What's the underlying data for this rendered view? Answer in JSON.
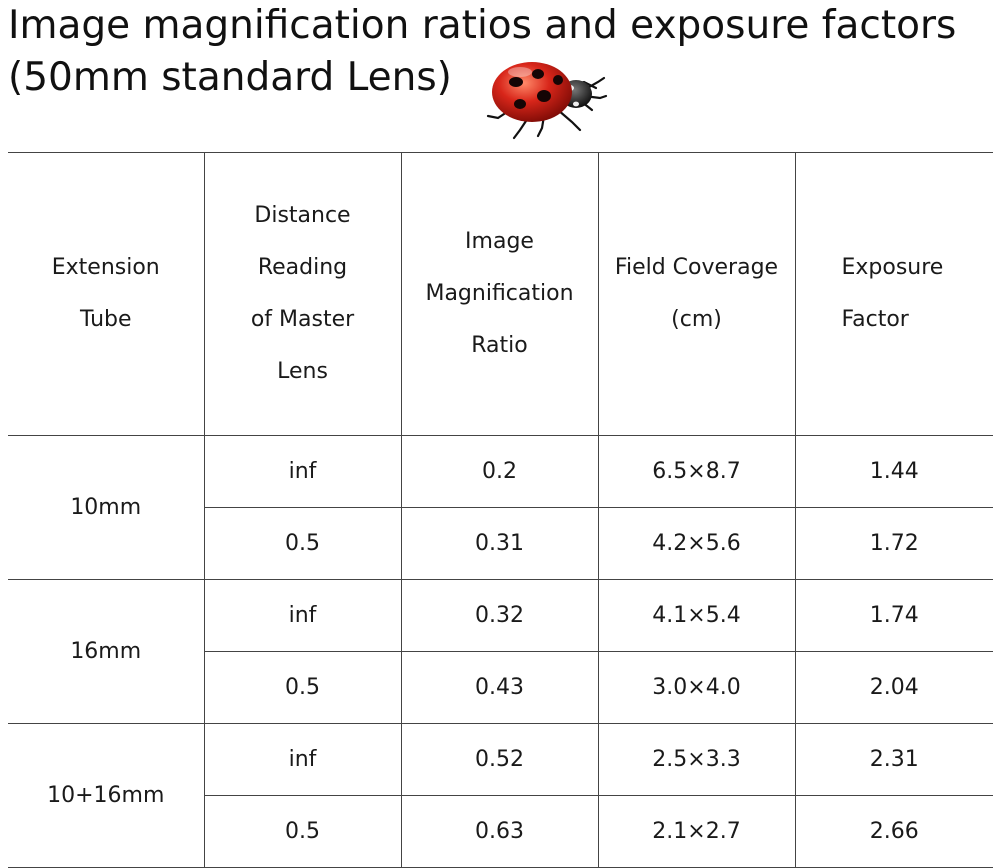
{
  "title": {
    "line1": "Image magnification ratios and exposure factors",
    "line2": "(50mm standard Lens)"
  },
  "table": {
    "headers": [
      [
        "Extension",
        "Tube"
      ],
      [
        "Distance",
        "Reading",
        "of Master",
        "Lens"
      ],
      [
        "Image",
        "Magnification",
        "Ratio"
      ],
      [
        "Field Coverage",
        "(cm)"
      ],
      [
        "Exposure",
        "Factor"
      ]
    ],
    "groups": [
      {
        "tube": "10mm",
        "rows": [
          {
            "distance": "inf",
            "ratio": "0.2",
            "coverage": "6.5×8.7",
            "factor": "1.44"
          },
          {
            "distance": "0.5",
            "ratio": "0.31",
            "coverage": "4.2×5.6",
            "factor": "1.72"
          }
        ]
      },
      {
        "tube": "16mm",
        "rows": [
          {
            "distance": "inf",
            "ratio": "0.32",
            "coverage": "4.1×5.4",
            "factor": "1.74"
          },
          {
            "distance": "0.5",
            "ratio": "0.43",
            "coverage": "3.0×4.0",
            "factor": "2.04"
          }
        ]
      },
      {
        "tube": "10+16mm",
        "rows": [
          {
            "distance": "inf",
            "ratio": "0.52",
            "coverage": "2.5×3.3",
            "factor": "2.31"
          },
          {
            "distance": "0.5",
            "ratio": "0.63",
            "coverage": "2.1×2.7",
            "factor": "2.66"
          }
        ]
      }
    ]
  }
}
